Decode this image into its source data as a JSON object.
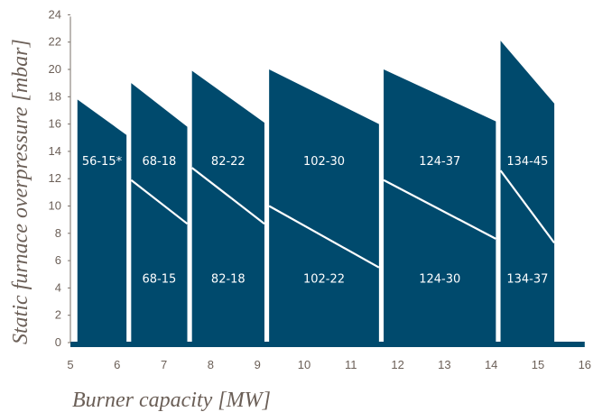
{
  "chart_data": {
    "type": "area",
    "title": "",
    "xlabel": "Burner capacity [MW]",
    "ylabel": "Static furnace overpressure [mbar]",
    "xlim": [
      5,
      16
    ],
    "ylim": [
      0,
      24
    ],
    "x_ticks": [
      5,
      6,
      7,
      8,
      9,
      10,
      11,
      12,
      13,
      14,
      15,
      16
    ],
    "y_ticks": [
      0,
      2,
      4,
      6,
      8,
      10,
      12,
      14,
      16,
      18,
      20,
      22,
      24
    ],
    "grid": false,
    "colors": {
      "fill": "#004a6d",
      "divider": "#ffffff",
      "axis_text": "#6b5f57",
      "axis_line": "#7a716a"
    },
    "baseline_extent": [
      5.0,
      16.0
    ],
    "regions": [
      {
        "x_start": 5.15,
        "x_end": 6.2,
        "top_left": 17.8,
        "top_right": 15.2,
        "upper_label": "56-15*"
      },
      {
        "x_start": 6.3,
        "x_end": 7.5,
        "top_left": 19.0,
        "top_right": 15.8,
        "divider_left": 11.9,
        "divider_right": 8.7,
        "upper_label": "68-18",
        "lower_label": "68-15"
      },
      {
        "x_start": 7.6,
        "x_end": 9.15,
        "top_left": 19.9,
        "top_right": 16.1,
        "divider_left": 12.8,
        "divider_right": 8.7,
        "upper_label": "82-22",
        "lower_label": "82-18"
      },
      {
        "x_start": 9.25,
        "x_end": 11.6,
        "top_left": 20.0,
        "top_right": 16.0,
        "divider_left": 10.0,
        "divider_right": 5.5,
        "upper_label": "102-30",
        "lower_label": "102-22"
      },
      {
        "x_start": 11.7,
        "x_end": 14.1,
        "top_left": 20.0,
        "top_right": 16.2,
        "divider_left": 11.9,
        "divider_right": 7.6,
        "upper_label": "124-37",
        "lower_label": "124-30"
      },
      {
        "x_start": 14.2,
        "x_end": 15.35,
        "top_left": 22.1,
        "top_right": 17.5,
        "divider_left": 12.6,
        "divider_right": 7.3,
        "upper_label": "134-45",
        "lower_label": "134-37"
      }
    ]
  }
}
